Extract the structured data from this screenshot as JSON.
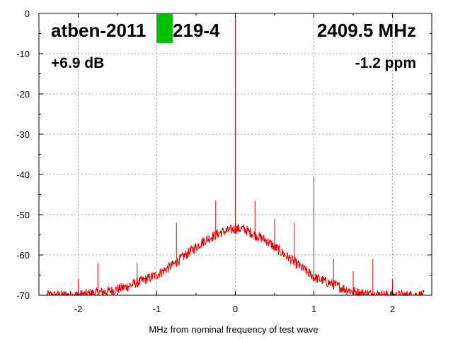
{
  "chart_data": {
    "type": "line",
    "title": "atben-2011",
    "title_suffix": "219-4",
    "frequency_label": "2409.5 MHz",
    "gain_label": "+6.9 dB",
    "ppm_label": "-1.2 ppm",
    "xlabel": "MHz from nominal frequency of test wave",
    "ylabel": "",
    "xlim": [
      -2.5,
      2.5
    ],
    "ylim": [
      -70,
      0
    ],
    "x_ticks": [
      -2,
      -1,
      0,
      1,
      2
    ],
    "x_tick_labels": [
      "-2",
      "-1",
      "0",
      "1",
      "2"
    ],
    "y_ticks": [
      0,
      -10,
      -20,
      -30,
      -40,
      -50,
      -60,
      -70
    ],
    "y_tick_labels": [
      "0",
      "-10",
      "-20",
      "-30",
      "-40",
      "-50",
      "-60",
      "-70"
    ],
    "grid": true,
    "series_color": "#e00000",
    "marker_color": "#00c000",
    "noise_floor": {
      "x": [
        -2.4,
        -2.2,
        -2.0,
        -1.8,
        -1.6,
        -1.4,
        -1.2,
        -1.0,
        -0.8,
        -0.6,
        -0.4,
        -0.2,
        -0.1,
        0.0,
        0.1,
        0.2,
        0.4,
        0.6,
        0.8,
        1.0,
        1.2,
        1.4,
        1.6,
        1.8,
        2.0,
        2.2,
        2.4
      ],
      "y": [
        -70,
        -70,
        -70,
        -69.5,
        -69,
        -68,
        -66.5,
        -65,
        -62.5,
        -59.5,
        -56.5,
        -54.5,
        -54,
        -53.5,
        -53.5,
        -54.5,
        -56.5,
        -59.5,
        -62.5,
        -65.5,
        -67,
        -68.5,
        -69.5,
        -69.8,
        -70,
        -70,
        -70
      ]
    },
    "spurs": {
      "x": [
        0.0,
        0.0,
        0.25,
        -0.25,
        0.5,
        -0.75,
        0.75,
        1.0,
        1.0,
        -1.25,
        1.25,
        1.5,
        1.75,
        -1.75,
        2.0,
        -2.0
      ],
      "y": [
        0,
        -44,
        -46.5,
        -46.5,
        -51,
        -52,
        -52,
        -40.5,
        -61,
        -62,
        -61,
        -64,
        -61,
        -62,
        -66,
        -66
      ]
    }
  }
}
